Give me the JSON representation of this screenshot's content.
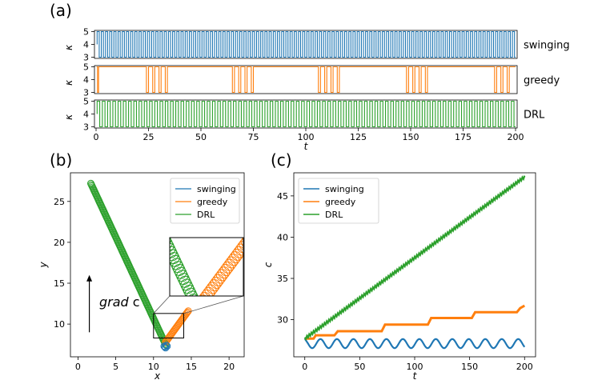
{
  "panel_labels": [
    "(a)",
    "(b)",
    "(c)"
  ],
  "colors": {
    "swinging": "#1f77b4",
    "greedy": "#ff7f0e",
    "DRL": "#2ca02c"
  },
  "chart_data": [
    {
      "type": "line",
      "panel": "(a)",
      "xlabel": "t",
      "ylabel": "κ",
      "xlim": [
        0,
        200
      ],
      "ylim": [
        3,
        5
      ],
      "xticks": [
        0,
        25,
        50,
        75,
        100,
        125,
        150,
        175,
        200
      ],
      "yticks": [
        3,
        4,
        5
      ],
      "series": [
        {
          "name": "swinging",
          "pattern": "square wave between κ=3 and κ=5, period ≈ 2 (t≈0.5 to 200)"
        },
        {
          "name": "greedy",
          "low_intervals_t": [
            [
              0.7,
              1.2
            ],
            [
              24.0,
              25.0
            ],
            [
              27.0,
              28.0
            ],
            [
              30.0,
              31.0
            ],
            [
              33.0,
              34.0
            ],
            [
              65.0,
              66.0
            ],
            [
              68.0,
              69.0
            ],
            [
              71.0,
              72.0
            ],
            [
              74.0,
              75.0
            ],
            [
              106.0,
              107.0
            ],
            [
              109.0,
              110.0
            ],
            [
              112.0,
              113.0
            ],
            [
              115.0,
              116.0
            ],
            [
              148.0,
              149.0
            ],
            [
              151.0,
              152.0
            ],
            [
              154.0,
              155.0
            ],
            [
              157.0,
              158.0
            ],
            [
              190.0,
              191.0
            ],
            [
              193.0,
              194.0
            ],
            [
              196.0,
              197.0
            ]
          ]
        },
        {
          "name": "DRL",
          "pattern": "square wave between κ=3 and κ=5, period ≈ 2.5 (t≈0.5 to 200)"
        }
      ]
    },
    {
      "type": "scatter",
      "panel": "(b)",
      "xlabel": "x",
      "ylabel": "y",
      "xlim": [
        -1,
        22
      ],
      "ylim": [
        6,
        28.5
      ],
      "xticks": [
        0,
        5,
        10,
        15,
        20
      ],
      "yticks": [
        10,
        15,
        20,
        25
      ],
      "legend": "top-right",
      "annotation": {
        "text": "grad c",
        "italic_part": "grad",
        "arrow_from": [
          1.5,
          9
        ],
        "arrow_to": [
          1.5,
          16
        ]
      },
      "inset_region": {
        "x": [
          10.0,
          14.0
        ],
        "y": [
          8.3,
          11.3
        ]
      },
      "series": [
        {
          "name": "swinging",
          "points": [
            [
              11.5,
              7.2
            ],
            [
              11.7,
              7.4
            ],
            [
              11.6,
              7.1
            ],
            [
              11.8,
              7.3
            ],
            [
              11.4,
              7.3
            ]
          ]
        },
        {
          "name": "greedy",
          "x": [
            11.6,
            14.6
          ],
          "y": [
            7.8,
            11.6
          ],
          "markers": 30
        },
        {
          "name": "DRL",
          "x": [
            1.7,
            11.6
          ],
          "y": [
            27.2,
            7.5
          ],
          "markers": 130
        }
      ]
    },
    {
      "type": "line",
      "panel": "(c)",
      "xlabel": "t",
      "ylabel": "c",
      "xlim": [
        -10,
        210
      ],
      "ylim": [
        25.5,
        47.8
      ],
      "xticks": [
        0,
        50,
        100,
        150,
        200
      ],
      "yticks": [
        30,
        35,
        40,
        45
      ],
      "legend": "top-left",
      "series": [
        {
          "name": "swinging",
          "start": 27.7,
          "mean": 27.1,
          "amplitude": 0.55,
          "period": 15
        },
        {
          "name": "greedy",
          "x": [
            0,
            8,
            10,
            27,
            30,
            70,
            73,
            112,
            115,
            152,
            155,
            193,
            196,
            200
          ],
          "y": [
            27.7,
            27.7,
            28.1,
            28.1,
            28.6,
            28.6,
            29.4,
            29.4,
            30.2,
            30.2,
            30.9,
            30.9,
            31.4,
            31.7
          ]
        },
        {
          "name": "DRL",
          "x": [
            0,
            200
          ],
          "y": [
            27.7,
            47.3
          ]
        }
      ]
    }
  ]
}
